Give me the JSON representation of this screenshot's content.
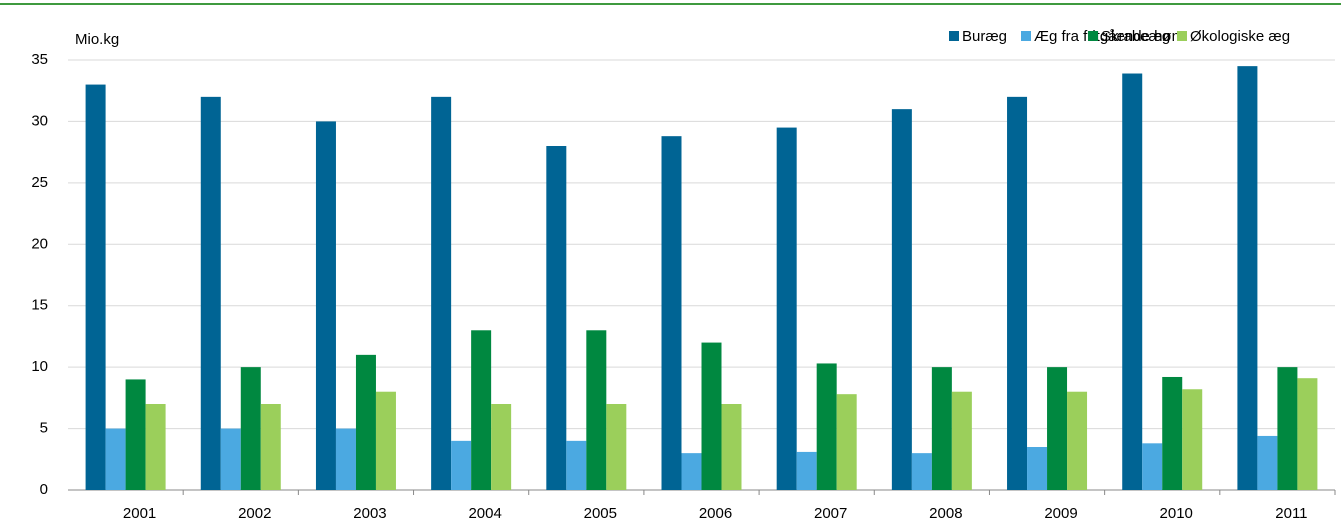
{
  "chart_data": {
    "type": "bar",
    "y_label": "Mio.kg",
    "categories": [
      "2001",
      "2002",
      "2003",
      "2004",
      "2005",
      "2006",
      "2007",
      "2008",
      "2009",
      "2010",
      "2011"
    ],
    "series": [
      {
        "name": "Buræg",
        "color": "#006494",
        "values": [
          33,
          32,
          30,
          32,
          28,
          28.8,
          29.5,
          31,
          32,
          33.9,
          34.5
        ]
      },
      {
        "name": "Æg fra fritgående høns",
        "color": "#4ba9e1",
        "values": [
          5,
          5,
          5,
          4,
          4,
          3,
          3.1,
          3,
          3.5,
          3.8,
          4.4
        ]
      },
      {
        "name": "Skrabeæg",
        "color": "#008840",
        "values": [
          9,
          10,
          11,
          13,
          13,
          12,
          10.3,
          10,
          10,
          9.2,
          10
        ]
      },
      {
        "name": "Økologiske æg",
        "color": "#9bcf5b",
        "values": [
          7,
          7,
          8,
          7,
          7,
          7,
          7.8,
          8,
          8,
          8.2,
          9.1
        ]
      }
    ],
    "ylim": [
      0,
      35
    ],
    "yticks": [
      0,
      5,
      10,
      15,
      20,
      25,
      30,
      35
    ],
    "grid": true,
    "legend": "top-right"
  }
}
